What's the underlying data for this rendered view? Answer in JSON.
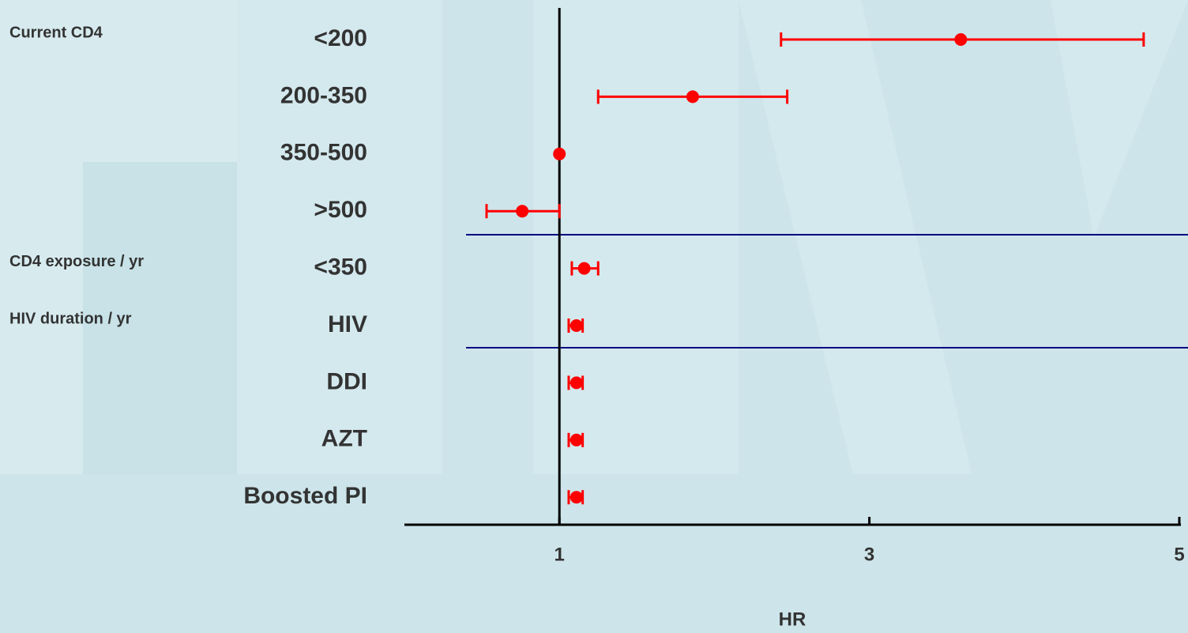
{
  "chart_data": {
    "type": "forest",
    "categories": [
      "<200",
      "200-350",
      "350-500",
      ">500",
      "<350",
      "HIV",
      "DDI",
      "AZT",
      "Boosted PI"
    ],
    "group_labels": [
      "Current CD4",
      null,
      null,
      null,
      "CD4 exposure / yr",
      "HIV duration / yr",
      null,
      null,
      null
    ],
    "values": [
      3.59,
      1.86,
      1.0,
      0.76,
      1.16,
      1.11,
      1.11,
      1.11,
      1.11
    ],
    "lower": [
      2.43,
      1.25,
      null,
      0.53,
      1.08,
      1.06,
      1.06,
      1.06,
      1.06
    ],
    "upper": [
      4.77,
      2.47,
      null,
      1.0,
      1.25,
      1.15,
      1.15,
      1.15,
      1.15
    ],
    "color": "#ff0000",
    "reference": 1,
    "xlim": [
      0,
      5
    ],
    "xticks": [
      1,
      3,
      5
    ],
    "xlabel": "HR"
  }
}
